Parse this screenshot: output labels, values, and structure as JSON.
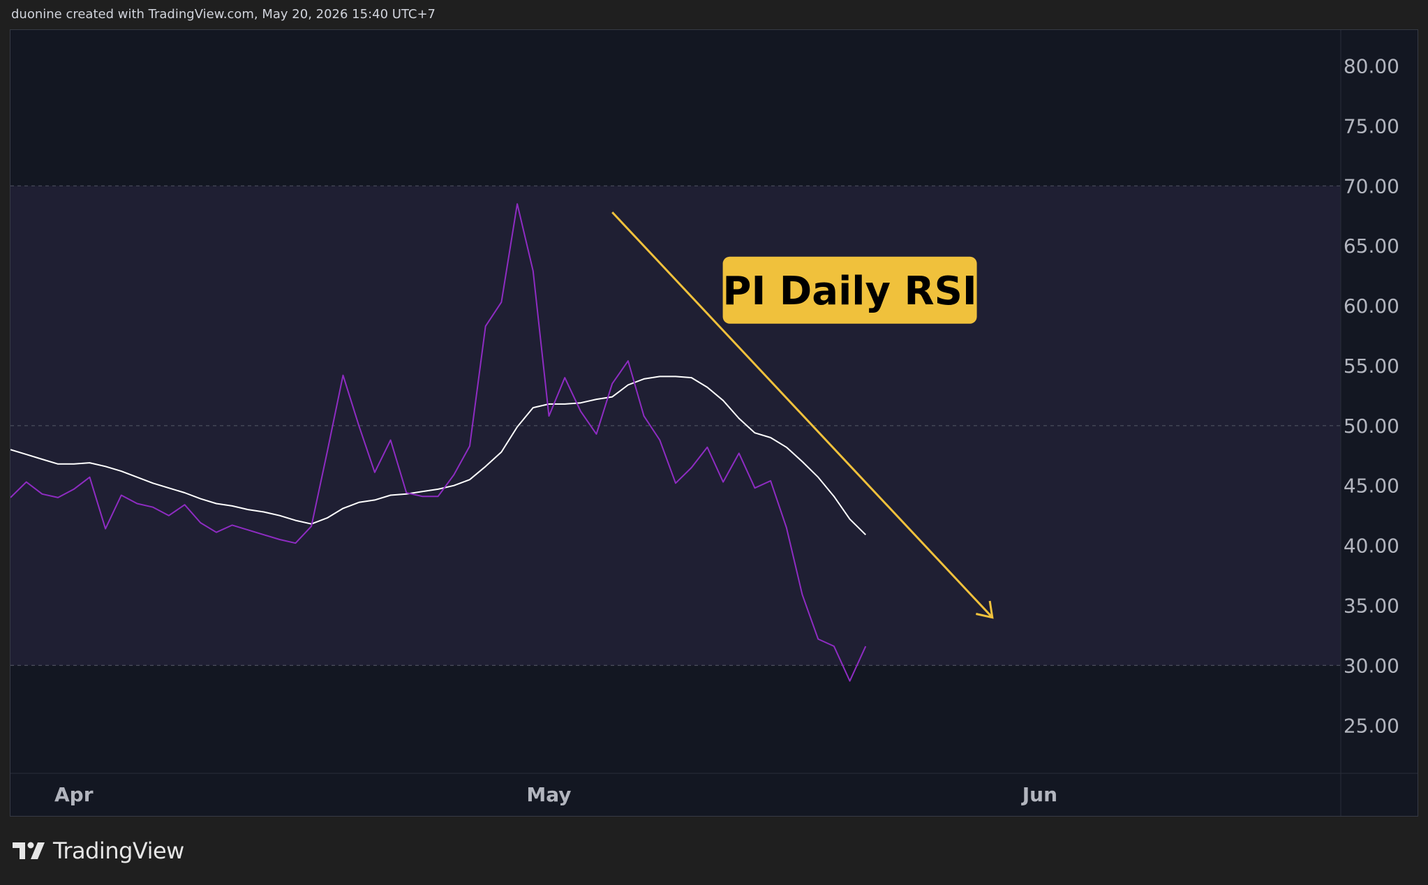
{
  "header": {
    "attribution": "duonine created with TradingView.com, May 20, 2026 15:40 UTC+7"
  },
  "footer": {
    "brand": "TradingView",
    "logo_icon": "tradingview-logo-icon"
  },
  "colors": {
    "background": "#131722",
    "band_fill": "#1f1f33",
    "rsi_line": "#ffffff",
    "rsi_ma_line": "#8e2cc2",
    "trend_arrow": "#f0c13c",
    "label_bg": "#f0c13c",
    "label_text": "#000000",
    "axis_text": "#b2b5be",
    "grid_line": "#4a4e5c"
  },
  "chart_data": {
    "type": "line",
    "title": "PI Daily RSI",
    "xlabel": "",
    "ylabel": "",
    "ylim": [
      21,
      83
    ],
    "xlim": [
      "2026-03-28",
      "2026-06-20"
    ],
    "x_ticks": [
      "Apr",
      "May",
      "Jun"
    ],
    "x_tick_dates": [
      "2026-04-01",
      "2026-05-01",
      "2026-06-01"
    ],
    "y_ticks": [
      "80.00",
      "75.00",
      "70.00",
      "65.00",
      "60.00",
      "55.00",
      "50.00",
      "45.00",
      "40.00",
      "35.00",
      "30.00",
      "25.00"
    ],
    "band": {
      "upper": 70,
      "lower": 30,
      "middle": 50
    },
    "series": [
      {
        "x": [
          "2026-03-28",
          "2026-03-29",
          "2026-03-30",
          "2026-03-31",
          "2026-04-01",
          "2026-04-02",
          "2026-04-03",
          "2026-04-04",
          "2026-04-05",
          "2026-04-06",
          "2026-04-07",
          "2026-04-08",
          "2026-04-09",
          "2026-04-10",
          "2026-04-11",
          "2026-04-12",
          "2026-04-13",
          "2026-04-14",
          "2026-04-15",
          "2026-04-16",
          "2026-04-17",
          "2026-04-18",
          "2026-04-19",
          "2026-04-20",
          "2026-04-21",
          "2026-04-22",
          "2026-04-23",
          "2026-04-24",
          "2026-04-25",
          "2026-04-26",
          "2026-04-27",
          "2026-04-28",
          "2026-04-29",
          "2026-04-30",
          "2026-05-01",
          "2026-05-02",
          "2026-05-03",
          "2026-05-04",
          "2026-05-05",
          "2026-05-06",
          "2026-05-07",
          "2026-05-08",
          "2026-05-09",
          "2026-05-10",
          "2026-05-11",
          "2026-05-12",
          "2026-05-13",
          "2026-05-14",
          "2026-05-15",
          "2026-05-16",
          "2026-05-17",
          "2026-05-18",
          "2026-05-19",
          "2026-05-20",
          "2026-05-21"
        ],
        "values": [
          44.0,
          45.3,
          44.3,
          44.0,
          44.7,
          45.7,
          41.4,
          44.2,
          43.5,
          43.2,
          42.5,
          43.4,
          41.9,
          41.1,
          41.7,
          41.3,
          40.9,
          40.5,
          40.2,
          41.6,
          47.8,
          54.2,
          50.0,
          46.1,
          48.8,
          44.4,
          44.1,
          44.1,
          45.9,
          48.3,
          58.3,
          60.3,
          68.5,
          62.9,
          50.8,
          54.0,
          51.2,
          49.3,
          53.5,
          55.4,
          50.8,
          48.8,
          45.2,
          46.5,
          48.2,
          45.3,
          47.7,
          44.8,
          45.4,
          41.5,
          35.9,
          32.2,
          31.6,
          28.7,
          31.6
        ]
      },
      {
        "x": [
          "2026-03-28",
          "2026-03-29",
          "2026-03-30",
          "2026-03-31",
          "2026-04-01",
          "2026-04-02",
          "2026-04-03",
          "2026-04-04",
          "2026-04-05",
          "2026-04-06",
          "2026-04-07",
          "2026-04-08",
          "2026-04-09",
          "2026-04-10",
          "2026-04-11",
          "2026-04-12",
          "2026-04-13",
          "2026-04-14",
          "2026-04-15",
          "2026-04-16",
          "2026-04-17",
          "2026-04-18",
          "2026-04-19",
          "2026-04-20",
          "2026-04-21",
          "2026-04-22",
          "2026-04-23",
          "2026-04-24",
          "2026-04-25",
          "2026-04-26",
          "2026-04-27",
          "2026-04-28",
          "2026-04-29",
          "2026-04-30",
          "2026-05-01",
          "2026-05-02",
          "2026-05-03",
          "2026-05-04",
          "2026-05-05",
          "2026-05-06",
          "2026-05-07",
          "2026-05-08",
          "2026-05-09",
          "2026-05-10",
          "2026-05-11",
          "2026-05-12",
          "2026-05-13",
          "2026-05-14",
          "2026-05-15",
          "2026-05-16",
          "2026-05-17",
          "2026-05-18",
          "2026-05-19",
          "2026-05-20",
          "2026-05-21"
        ],
        "values": [
          48.0,
          47.6,
          47.2,
          46.8,
          46.8,
          46.9,
          46.6,
          46.2,
          45.7,
          45.2,
          44.8,
          44.4,
          43.9,
          43.5,
          43.3,
          43.0,
          42.8,
          42.5,
          42.1,
          41.8,
          42.3,
          43.1,
          43.6,
          43.8,
          44.2,
          44.3,
          44.5,
          44.7,
          45.0,
          45.5,
          46.6,
          47.8,
          49.9,
          51.5,
          51.8,
          51.8,
          51.9,
          52.2,
          52.4,
          53.4,
          53.9,
          54.1,
          54.1,
          54.0,
          53.2,
          52.1,
          50.6,
          49.4,
          49.0,
          48.2,
          47.0,
          45.7,
          44.1,
          42.2,
          40.9
        ]
      }
    ],
    "annotations": [
      {
        "type": "arrow",
        "from": {
          "x": "2026-05-05",
          "y": 67.8
        },
        "to": {
          "x": "2026-05-29",
          "y": 34.0
        }
      },
      {
        "type": "label",
        "text": "PI Daily RSI",
        "at": {
          "x": "2026-05-20",
          "y": 61.3
        }
      }
    ]
  }
}
